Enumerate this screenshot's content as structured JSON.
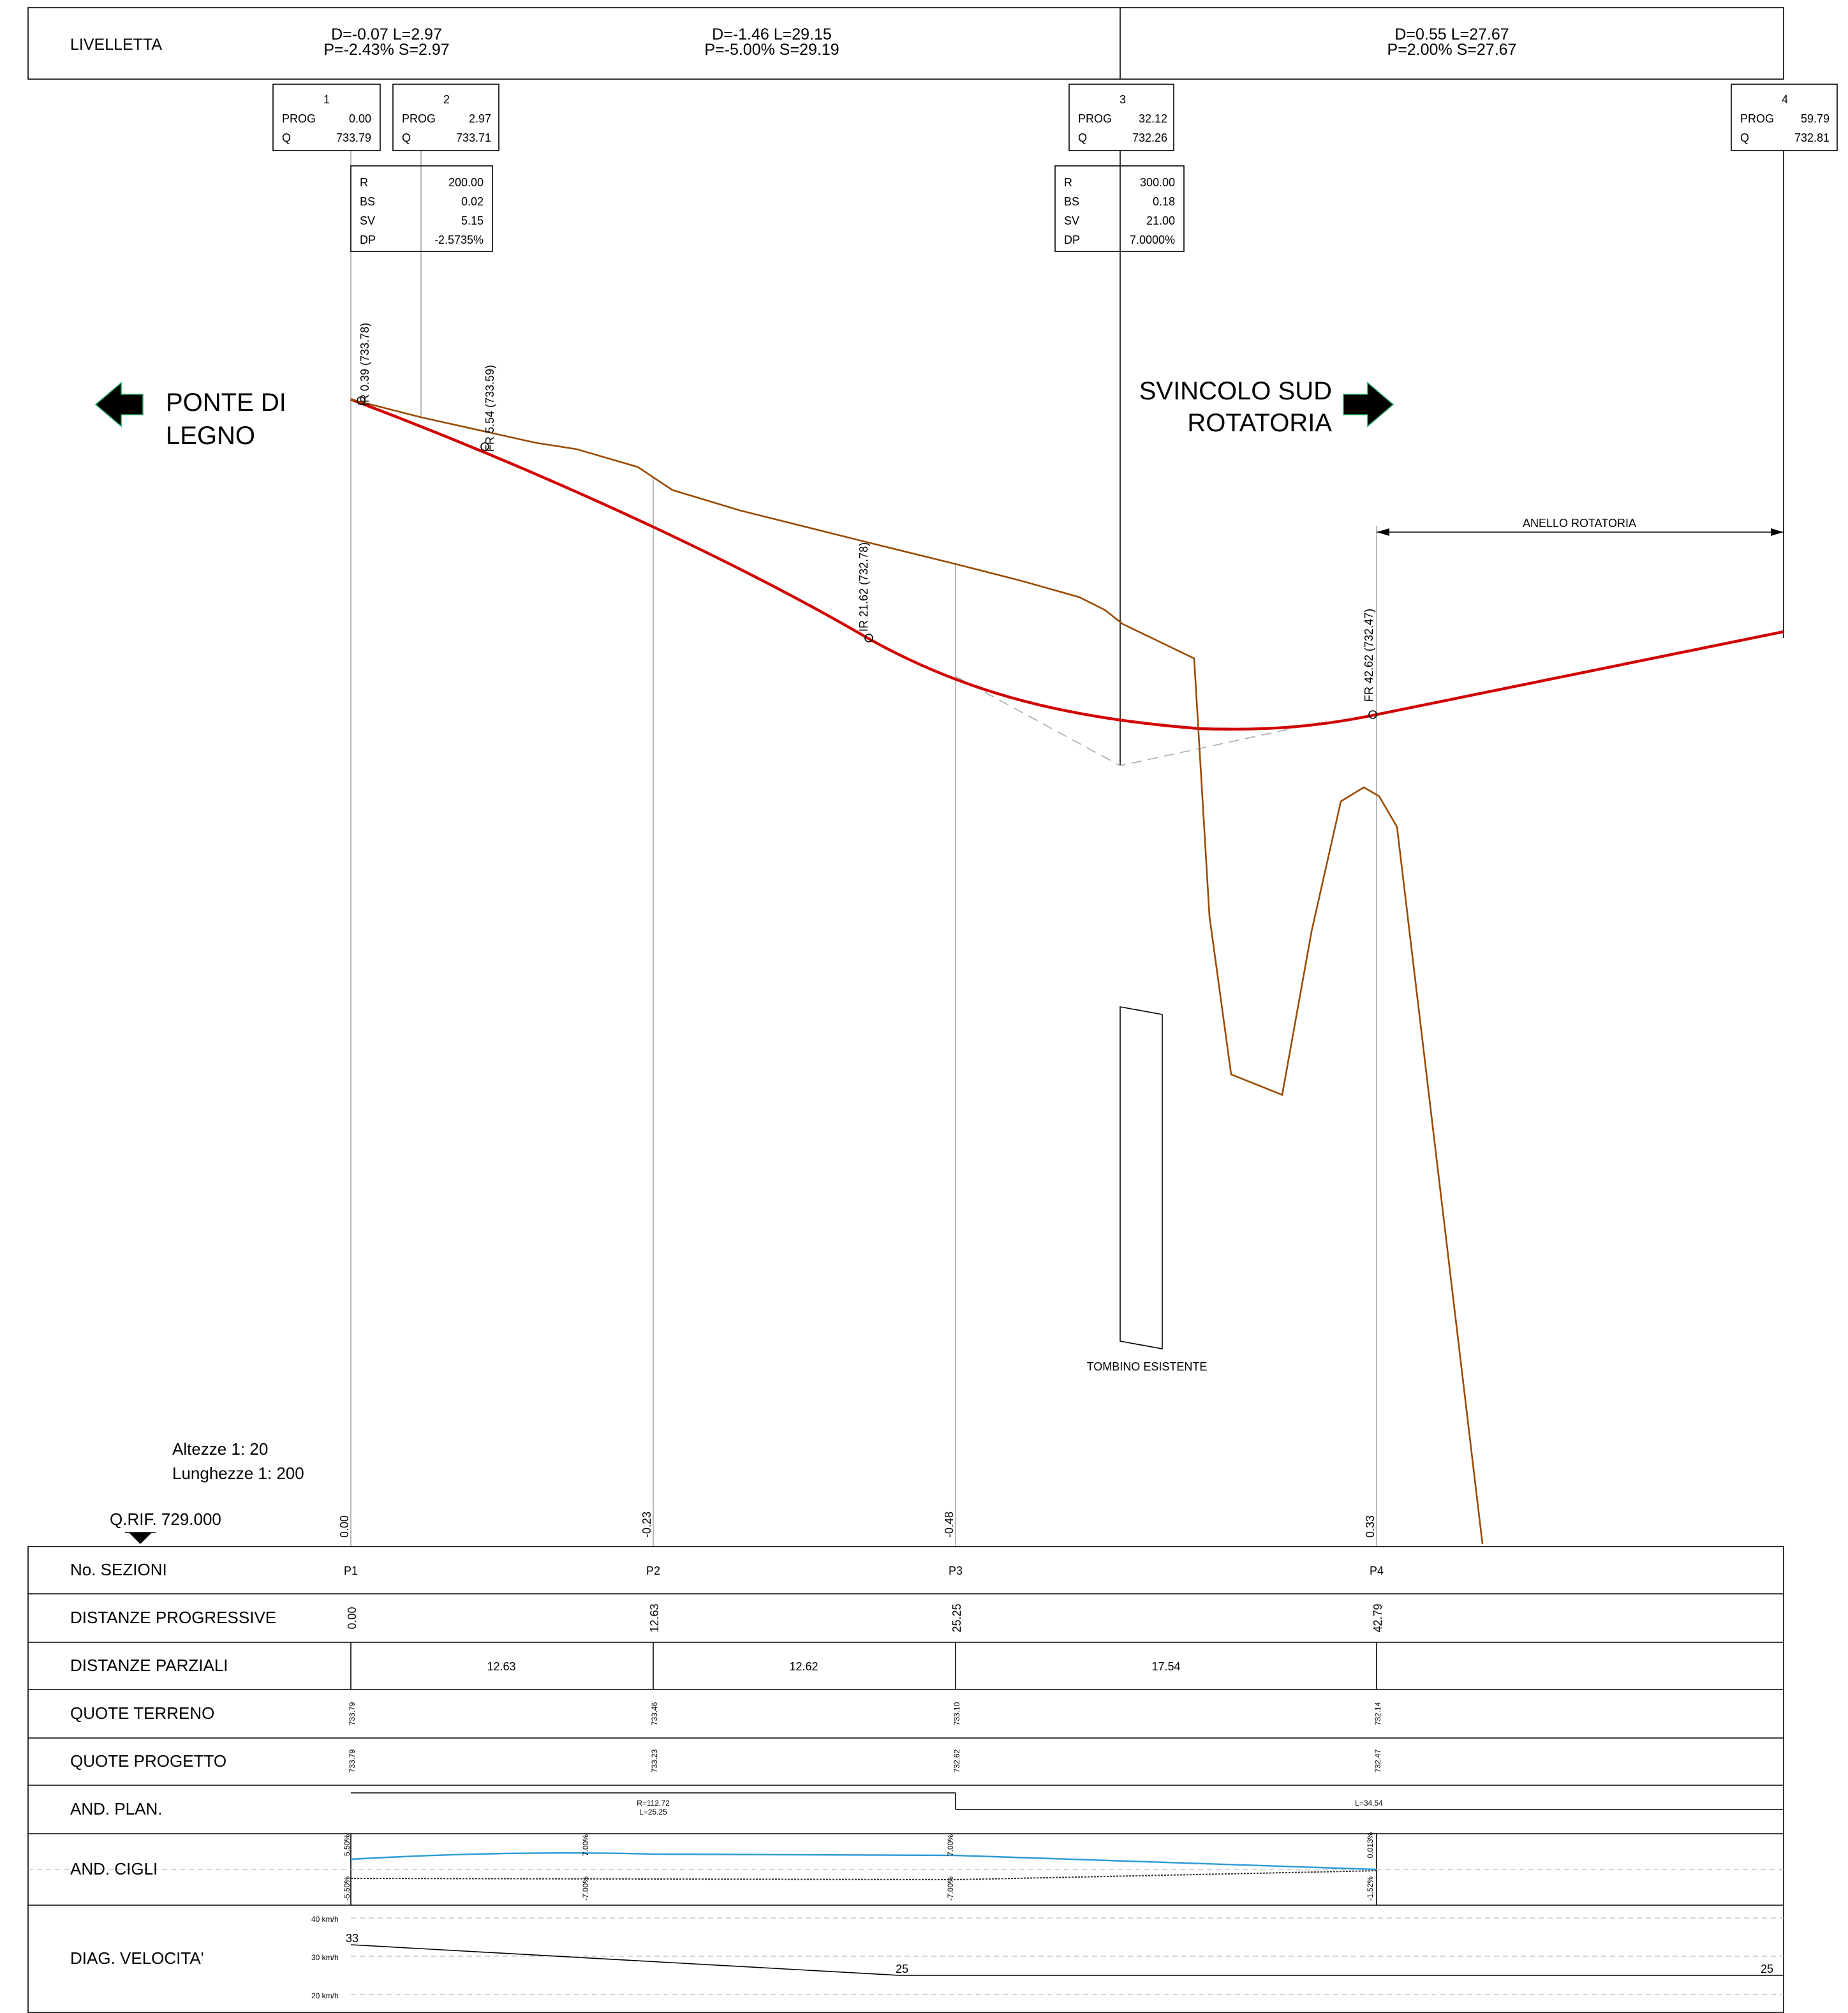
{
  "header": {
    "title": "LIVELLETTA",
    "segments": [
      [
        "D=-0.07 L=2.97",
        "P=-2.43% S=2.97"
      ],
      [
        "D=-1.46 L=29.15",
        "P=-5.00% S=29.19"
      ],
      [
        "D=0.55 L=27.67",
        "P=2.00% S=27.67"
      ]
    ]
  },
  "vertices": [
    {
      "id": "1",
      "prog_label": "PROG",
      "prog": "0.00",
      "q_label": "Q",
      "q": "733.79"
    },
    {
      "id": "2",
      "prog_label": "PROG",
      "prog": "2.97",
      "q_label": "Q",
      "q": "733.71"
    },
    {
      "id": "3",
      "prog_label": "PROG",
      "prog": "32.12",
      "q_label": "Q",
      "q": "732.26"
    },
    {
      "id": "4",
      "prog_label": "PROG",
      "prog": "59.79",
      "q_label": "Q",
      "q": "732.81"
    }
  ],
  "curves": [
    {
      "rows": [
        [
          "R",
          "200.00"
        ],
        [
          "BS",
          "0.02"
        ],
        [
          "SV",
          "5.15"
        ],
        [
          "DP",
          "-2.5735%"
        ]
      ]
    },
    {
      "rows": [
        [
          "R",
          "300.00"
        ],
        [
          "BS",
          "0.18"
        ],
        [
          "SV",
          "21.00"
        ],
        [
          "DP",
          "7.0000%"
        ]
      ]
    }
  ],
  "curve_points": [
    "IR  0.39  (733.78)",
    "FR  5.54  (733.59)",
    "IR  21.62  (732.78)",
    "FR  42.62  (732.47)"
  ],
  "labels": {
    "left_dir": [
      "PONTE DI",
      "LEGNO"
    ],
    "right_dir": [
      "SVINCOLO SUD",
      "ROTATORIA"
    ],
    "ring": "ANELLO ROTATORIA",
    "culvert": "TOMBINO ESISTENTE",
    "scale_h": "Altezze 1: 20",
    "scale_l": "Lunghezze 1: 200",
    "qrif": "Q.RIF. 729.000"
  },
  "differences": [
    "0.00",
    "-0.23",
    "-0.48",
    "0.33"
  ],
  "table": {
    "rows": [
      {
        "label": "No. SEZIONI",
        "values": [
          "P1",
          "P2",
          "P3",
          "P4"
        ]
      },
      {
        "label": "DISTANZE PROGRESSIVE",
        "values": [
          "0.00",
          "12.63",
          "25.25",
          "42.79"
        ]
      },
      {
        "label": "DISTANZE PARZIALI",
        "values": [
          "12.63",
          "12.62",
          "17.54"
        ]
      },
      {
        "label": "QUOTE TERRENO",
        "values": [
          "733.79",
          "733.46",
          "733.10",
          "732.14"
        ]
      },
      {
        "label": "QUOTE PROGETTO",
        "values": [
          "733.79",
          "733.23",
          "732.62",
          "732.47"
        ]
      },
      {
        "label": "AND. PLAN.",
        "values": [
          "R=112.72",
          "L=25.25",
          "L=34.54"
        ]
      },
      {
        "label": "AND. CIGLI",
        "values": [
          "5.50%",
          "7.00%",
          "7.00%",
          "0.013%",
          "-5.50%",
          "-7.00%",
          "-7.00%",
          "-1.52%"
        ]
      },
      {
        "label": "DIAG. VELOCITA'",
        "values": [
          "40 km/h",
          "30 km/h",
          "20 km/h",
          "33",
          "25",
          "25"
        ]
      }
    ]
  }
}
